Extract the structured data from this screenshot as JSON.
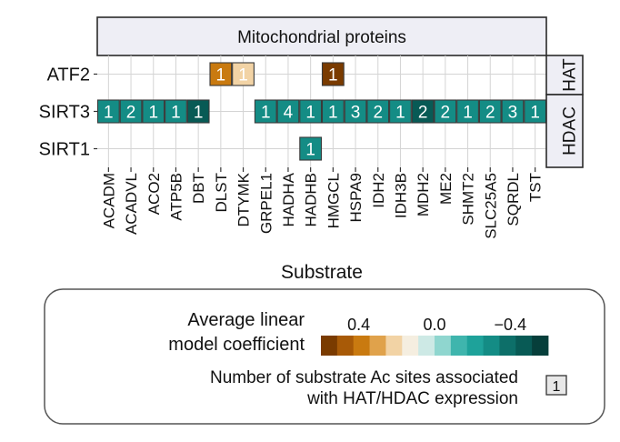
{
  "chart_data": {
    "type": "heatmap",
    "facet_title": "Mitochondrial proteins",
    "xlabel": "Substrate",
    "ylabel": "",
    "rows": [
      "ATF2",
      "SIRT3",
      "SIRT1"
    ],
    "row_groups": [
      {
        "label": "HAT",
        "rows": [
          "ATF2"
        ]
      },
      {
        "label": "HDAC",
        "rows": [
          "SIRT3",
          "SIRT1"
        ]
      }
    ],
    "columns": [
      "ACADM",
      "ACADVL",
      "ACO2",
      "ATP5B",
      "DBT",
      "DLST",
      "DTYMK",
      "GRPEL1",
      "HADHA",
      "HADHB",
      "HMGCL",
      "HSPA9",
      "IDH2",
      "IDH3B",
      "MDH2",
      "ME2",
      "SHMT2",
      "SLC25A5",
      "SQRDL",
      "TST"
    ],
    "cells": [
      {
        "row": "ATF2",
        "col": "DLST",
        "count": 1,
        "coef": 0.35
      },
      {
        "row": "ATF2",
        "col": "DTYMK",
        "count": 1,
        "coef": 0.2
      },
      {
        "row": "ATF2",
        "col": "HMGCL",
        "count": 1,
        "coef": 0.55
      },
      {
        "row": "SIRT3",
        "col": "ACADM",
        "count": 1,
        "coef": -0.33
      },
      {
        "row": "SIRT3",
        "col": "ACADVL",
        "count": 2,
        "coef": -0.33
      },
      {
        "row": "SIRT3",
        "col": "ACO2",
        "count": 1,
        "coef": -0.33
      },
      {
        "row": "SIRT3",
        "col": "ATP5B",
        "count": 1,
        "coef": -0.33
      },
      {
        "row": "SIRT3",
        "col": "DBT",
        "count": 1,
        "coef": -0.5
      },
      {
        "row": "SIRT3",
        "col": "GRPEL1",
        "count": 1,
        "coef": -0.33
      },
      {
        "row": "SIRT3",
        "col": "HADHA",
        "count": 4,
        "coef": -0.33
      },
      {
        "row": "SIRT3",
        "col": "HADHB",
        "count": 1,
        "coef": -0.33
      },
      {
        "row": "SIRT3",
        "col": "HMGCL",
        "count": 1,
        "coef": -0.33
      },
      {
        "row": "SIRT3",
        "col": "HSPA9",
        "count": 3,
        "coef": -0.33
      },
      {
        "row": "SIRT3",
        "col": "IDH2",
        "count": 2,
        "coef": -0.33
      },
      {
        "row": "SIRT3",
        "col": "IDH3B",
        "count": 1,
        "coef": -0.33
      },
      {
        "row": "SIRT3",
        "col": "MDH2",
        "count": 2,
        "coef": -0.45
      },
      {
        "row": "SIRT3",
        "col": "ME2",
        "count": 2,
        "coef": -0.33
      },
      {
        "row": "SIRT3",
        "col": "SHMT2",
        "count": 1,
        "coef": -0.33
      },
      {
        "row": "SIRT3",
        "col": "SLC25A5",
        "count": 2,
        "coef": -0.33
      },
      {
        "row": "SIRT3",
        "col": "SQRDL",
        "count": 3,
        "coef": -0.33
      },
      {
        "row": "SIRT3",
        "col": "TST",
        "count": 1,
        "coef": -0.33
      },
      {
        "row": "SIRT1",
        "col": "HADHB",
        "count": 1,
        "coef": -0.28
      }
    ],
    "legend": {
      "color_title_line1": "Average linear",
      "color_title_line2": "model coefficient",
      "color_ticks": [
        {
          "label": "0.4",
          "value": 0.4
        },
        {
          "label": "0.0",
          "value": 0.0
        },
        {
          "label": "−0.4",
          "value": -0.4
        }
      ],
      "color_range": [
        0.6,
        -0.6
      ],
      "palette": [
        "#7a3b00",
        "#a85a07",
        "#c97a10",
        "#e0a24b",
        "#f2d3a5",
        "#f5eee0",
        "#cde9e5",
        "#8fd6cf",
        "#3fb5ad",
        "#1ea29a",
        "#148c85",
        "#0d6f69",
        "#085a55",
        "#063f3b"
      ],
      "count_line1": "Number of substrate Ac sites associated",
      "count_line2": "with HAT/HDAC expression",
      "count_example": "1"
    },
    "colors": {
      "HAT_mid": "#e0a24b",
      "HDAC_mid": "#1ea29a",
      "strip_fill": "#eeeef5",
      "grid": "#d4d4d4"
    }
  }
}
